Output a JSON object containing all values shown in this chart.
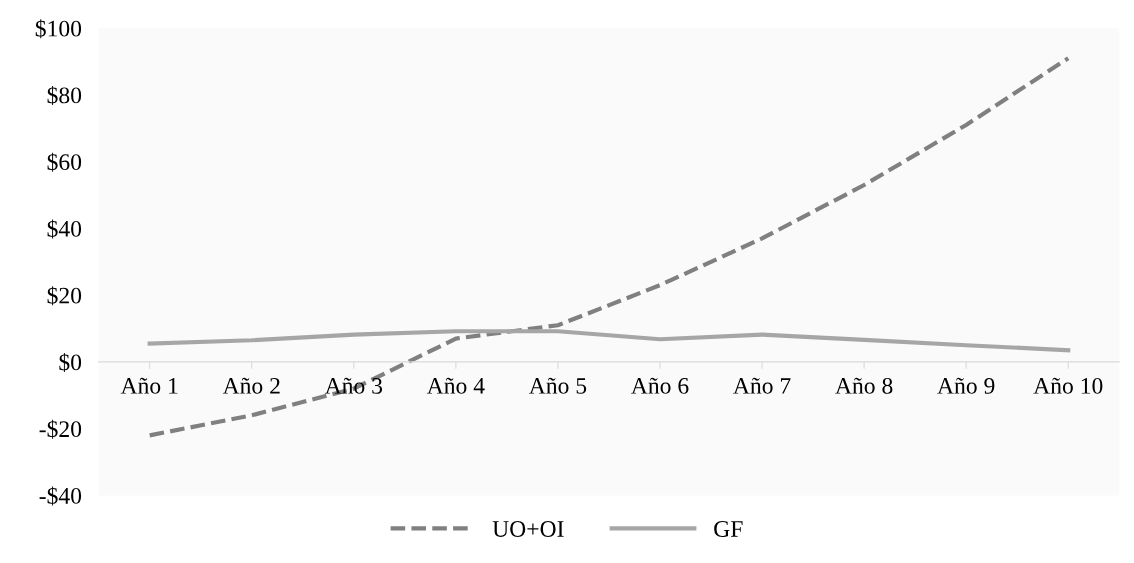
{
  "chart_data": {
    "type": "line",
    "categories": [
      "Año 1",
      "Año 2",
      "Año 3",
      "Año 4",
      "Año 5",
      "Año 6",
      "Año 7",
      "Año 8",
      "Año 9",
      "Año 10"
    ],
    "series": [
      {
        "name": "UO+OI",
        "color": "#808080",
        "line_style": "dashed",
        "values": [
          -22,
          -16,
          -8,
          7,
          11,
          23,
          37,
          53,
          71,
          91
        ]
      },
      {
        "name": "GF",
        "color": "#a6a6a6",
        "line_style": "solid",
        "values": [
          5.5,
          6.5,
          8.2,
          9.2,
          9.2,
          6.8,
          8.2,
          6.6,
          5,
          3.5
        ]
      }
    ],
    "ylim": [
      -40,
      100
    ],
    "yticks": [
      {
        "value": -40,
        "label": "-$40"
      },
      {
        "value": -20,
        "label": "-$20"
      },
      {
        "value": 0,
        "label": "$0"
      },
      {
        "value": 20,
        "label": "$20"
      },
      {
        "value": 40,
        "label": "$40"
      },
      {
        "value": 60,
        "label": "$60"
      },
      {
        "value": 80,
        "label": "$80"
      },
      {
        "value": 100,
        "label": "$100"
      }
    ],
    "grid": false,
    "legend": "bottom",
    "marker": "none"
  }
}
